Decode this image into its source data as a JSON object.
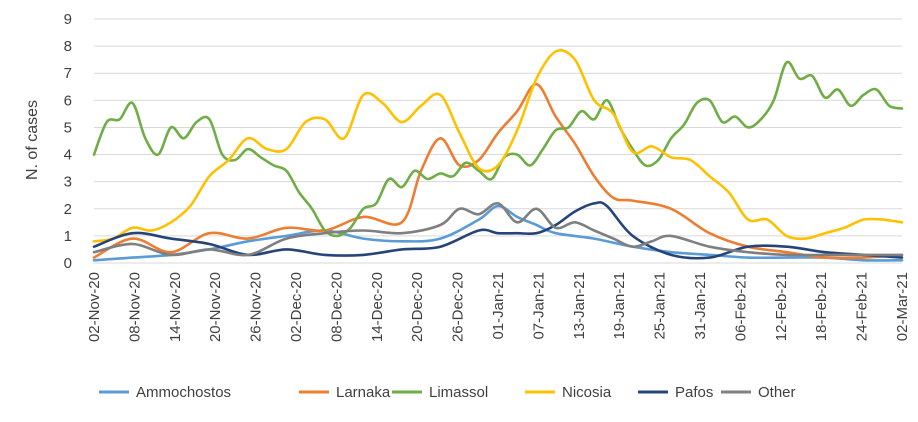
{
  "chart_data": {
    "type": "line",
    "title": "",
    "xlabel": "",
    "ylabel": "N. of cases",
    "ylim": [
      0,
      9
    ],
    "yticks": [
      0,
      1,
      2,
      3,
      4,
      5,
      6,
      7,
      8,
      9
    ],
    "grid": "horizontal",
    "legend_position": "bottom",
    "x_tick_labels": [
      "02-Nov-20",
      "08-Nov-20",
      "14-Nov-20",
      "20-Nov-20",
      "26-Nov-20",
      "02-Dec-20",
      "08-Dec-20",
      "14-Dec-20",
      "20-Dec-20",
      "26-Dec-20",
      "01-Jan-21",
      "07-Jan-21",
      "13-Jan-21",
      "19-Jan-21",
      "25-Jan-21",
      "31-Jan-21",
      "06-Feb-21",
      "12-Feb-21",
      "18-Feb-21",
      "24-Feb-21",
      "02-Mar-21"
    ],
    "x_start_day": 0,
    "x_end_day": 126,
    "series": [
      {
        "name": "Ammochostos",
        "color": "#5b9bd5",
        "days": [
          0,
          6,
          12,
          18,
          24,
          30,
          36,
          42,
          48,
          54,
          60,
          63,
          66,
          69,
          72,
          78,
          84,
          90,
          96,
          102,
          108,
          114,
          120,
          126
        ],
        "values": [
          0.1,
          0.2,
          0.3,
          0.5,
          0.8,
          1.0,
          1.2,
          0.9,
          0.8,
          0.9,
          1.6,
          2.1,
          1.7,
          1.4,
          1.1,
          0.9,
          0.6,
          0.4,
          0.3,
          0.2,
          0.2,
          0.2,
          0.1,
          0.1
        ]
      },
      {
        "name": "Larnaka",
        "color": "#ed7d31",
        "days": [
          0,
          6,
          12,
          18,
          24,
          30,
          36,
          42,
          48,
          51,
          54,
          57,
          60,
          63,
          66,
          69,
          72,
          75,
          78,
          81,
          84,
          90,
          96,
          102,
          108,
          114,
          120,
          126
        ],
        "values": [
          0.2,
          0.9,
          0.4,
          1.1,
          0.9,
          1.3,
          1.2,
          1.7,
          1.5,
          3.4,
          4.6,
          3.6,
          3.8,
          4.8,
          5.6,
          6.6,
          5.4,
          4.4,
          3.2,
          2.4,
          2.3,
          2.0,
          1.1,
          0.6,
          0.4,
          0.2,
          0.2,
          0.3
        ]
      },
      {
        "name": "Limassol",
        "color": "#70ad47",
        "days": [
          0,
          2,
          4,
          6,
          8,
          10,
          12,
          14,
          16,
          18,
          20,
          22,
          24,
          26,
          28,
          30,
          32,
          34,
          36,
          38,
          40,
          42,
          44,
          46,
          48,
          50,
          52,
          54,
          56,
          58,
          60,
          62,
          64,
          66,
          68,
          70,
          72,
          74,
          76,
          78,
          80,
          82,
          84,
          86,
          88,
          90,
          92,
          94,
          96,
          98,
          100,
          102,
          104,
          106,
          108,
          110,
          112,
          114,
          116,
          118,
          120,
          122,
          124,
          126
        ],
        "values": [
          4.0,
          5.2,
          5.3,
          5.9,
          4.6,
          4.0,
          5.0,
          4.6,
          5.2,
          5.3,
          4.0,
          3.8,
          4.2,
          3.9,
          3.6,
          3.4,
          2.6,
          2.0,
          1.2,
          1.0,
          1.3,
          2.0,
          2.2,
          3.1,
          2.8,
          3.4,
          3.1,
          3.3,
          3.2,
          3.7,
          3.4,
          3.1,
          3.9,
          4.0,
          3.6,
          4.2,
          4.9,
          5.0,
          5.6,
          5.3,
          6.0,
          5.0,
          4.2,
          3.6,
          3.8,
          4.6,
          5.1,
          5.9,
          6.0,
          5.2,
          5.4,
          5.0,
          5.3,
          6.0,
          7.4,
          6.8,
          6.9,
          6.1,
          6.4,
          5.8,
          6.2,
          6.4,
          5.8,
          5.7
        ]
      },
      {
        "name": "Nicosia",
        "color": "#ffc000",
        "days": [
          0,
          3,
          6,
          9,
          12,
          15,
          18,
          21,
          24,
          27,
          30,
          33,
          36,
          39,
          42,
          45,
          48,
          51,
          54,
          57,
          60,
          63,
          66,
          69,
          72,
          75,
          78,
          81,
          84,
          87,
          90,
          93,
          96,
          99,
          102,
          105,
          108,
          111,
          114,
          117,
          120,
          123,
          126
        ],
        "values": [
          0.8,
          0.9,
          1.3,
          1.2,
          1.5,
          2.1,
          3.2,
          3.8,
          4.6,
          4.2,
          4.2,
          5.2,
          5.3,
          4.6,
          6.2,
          5.9,
          5.2,
          5.8,
          6.2,
          4.8,
          3.5,
          3.6,
          4.9,
          6.8,
          7.8,
          7.5,
          6.0,
          5.5,
          4.1,
          4.3,
          3.9,
          3.8,
          3.2,
          2.6,
          1.6,
          1.6,
          1.0,
          0.9,
          1.1,
          1.3,
          1.6,
          1.6,
          1.5
        ]
      },
      {
        "name": "Pafos",
        "color": "#264478",
        "days": [
          0,
          6,
          12,
          18,
          24,
          30,
          36,
          42,
          48,
          54,
          60,
          63,
          66,
          69,
          72,
          75,
          78,
          80,
          84,
          90,
          96,
          102,
          108,
          114,
          120,
          126
        ],
        "values": [
          0.6,
          1.1,
          0.9,
          0.7,
          0.3,
          0.5,
          0.3,
          0.3,
          0.5,
          0.6,
          1.2,
          1.1,
          1.1,
          1.1,
          1.4,
          1.9,
          2.2,
          2.1,
          1.0,
          0.3,
          0.2,
          0.6,
          0.6,
          0.4,
          0.3,
          0.2
        ]
      },
      {
        "name": "Other",
        "color": "#7f7f7f",
        "days": [
          0,
          6,
          12,
          18,
          24,
          30,
          36,
          42,
          48,
          54,
          57,
          60,
          63,
          66,
          69,
          72,
          75,
          78,
          81,
          84,
          87,
          90,
          96,
          102,
          108,
          114,
          120,
          126
        ],
        "values": [
          0.4,
          0.7,
          0.3,
          0.5,
          0.3,
          0.9,
          1.1,
          1.2,
          1.1,
          1.4,
          2.0,
          1.8,
          2.2,
          1.5,
          2.0,
          1.3,
          1.5,
          1.2,
          0.9,
          0.6,
          0.8,
          1.0,
          0.6,
          0.4,
          0.3,
          0.3,
          0.3,
          0.3
        ]
      }
    ]
  }
}
